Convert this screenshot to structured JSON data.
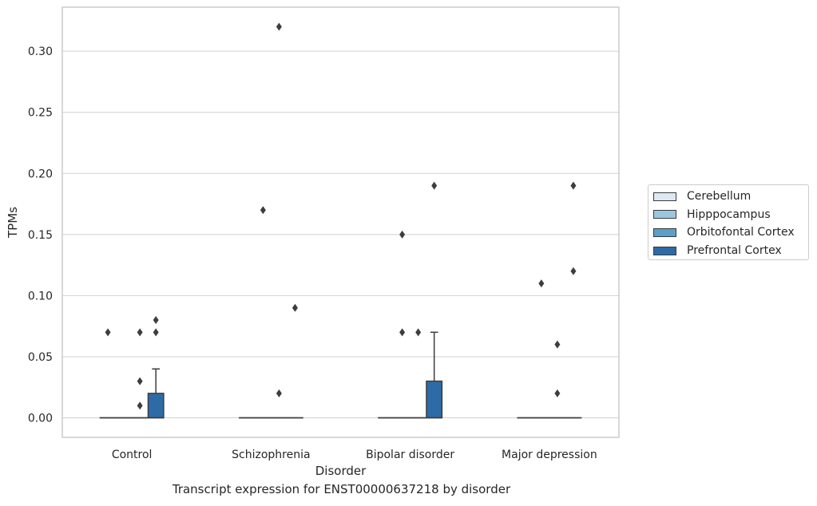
{
  "caption": "Transcript expression for ENST00000637218 by disorder",
  "chart_data": {
    "type": "box",
    "xlabel": "Disorder",
    "ylabel": "TPMs",
    "ylim": [
      -0.016,
      0.336
    ],
    "yticks": [
      "0.00",
      "0.05",
      "0.10",
      "0.15",
      "0.20",
      "0.25",
      "0.30"
    ],
    "categories": [
      "Control",
      "Schizophrenia",
      "Bipolar disorder",
      "Major depression"
    ],
    "grid": "horizontal",
    "legend_position": "right",
    "series": [
      {
        "name": "Cerebellum",
        "color": "#dce8f4",
        "boxes": [
          {
            "q1": 0,
            "median": 0,
            "q3": 0,
            "whislo": 0,
            "whishi": 0,
            "fliers": [
              0.07
            ]
          },
          {
            "q1": 0,
            "median": 0,
            "q3": 0,
            "whislo": 0,
            "whishi": 0,
            "fliers": []
          },
          {
            "q1": 0,
            "median": 0,
            "q3": 0,
            "whislo": 0,
            "whishi": 0,
            "fliers": []
          },
          {
            "q1": 0,
            "median": 0,
            "q3": 0,
            "whislo": 0,
            "whishi": 0,
            "fliers": []
          }
        ]
      },
      {
        "name": "Hipppocampus",
        "color": "#9dc6df",
        "boxes": [
          {
            "q1": 0,
            "median": 0,
            "q3": 0,
            "whislo": 0,
            "whishi": 0,
            "fliers": []
          },
          {
            "q1": 0,
            "median": 0,
            "q3": 0,
            "whislo": 0,
            "whishi": 0,
            "fliers": [
              0.17
            ]
          },
          {
            "q1": 0,
            "median": 0,
            "q3": 0,
            "whislo": 0,
            "whishi": 0,
            "fliers": [
              0.15,
              0.07
            ]
          },
          {
            "q1": 0,
            "median": 0,
            "q3": 0,
            "whislo": 0,
            "whishi": 0,
            "fliers": [
              0.11
            ]
          }
        ]
      },
      {
        "name": "Orbitofontal Cortex",
        "color": "#5c9fc8",
        "boxes": [
          {
            "q1": 0,
            "median": 0,
            "q3": 0,
            "whislo": 0,
            "whishi": 0,
            "fliers": [
              0.07,
              0.03,
              0.01
            ]
          },
          {
            "q1": 0,
            "median": 0,
            "q3": 0,
            "whislo": 0,
            "whishi": 0,
            "fliers": [
              0.32,
              0.02
            ]
          },
          {
            "q1": 0,
            "median": 0,
            "q3": 0,
            "whislo": 0,
            "whishi": 0,
            "fliers": [
              0.07
            ]
          },
          {
            "q1": 0,
            "median": 0,
            "q3": 0,
            "whislo": 0,
            "whishi": 0,
            "fliers": [
              0.06,
              0.02
            ]
          }
        ]
      },
      {
        "name": "Prefrontal Cortex",
        "color": "#2c6ba6",
        "boxes": [
          {
            "q1": 0,
            "median": 0,
            "q3": 0.02,
            "whislo": 0,
            "whishi": 0.04,
            "fliers": [
              0.08,
              0.07
            ]
          },
          {
            "q1": 0,
            "median": 0,
            "q3": 0,
            "whislo": 0,
            "whishi": 0,
            "fliers": [
              0.09
            ]
          },
          {
            "q1": 0,
            "median": 0,
            "q3": 0.03,
            "whislo": 0,
            "whishi": 0.07,
            "fliers": [
              0.19
            ]
          },
          {
            "q1": 0,
            "median": 0,
            "q3": 0,
            "whislo": 0,
            "whishi": 0,
            "fliers": [
              0.19,
              0.12
            ]
          }
        ]
      }
    ]
  }
}
